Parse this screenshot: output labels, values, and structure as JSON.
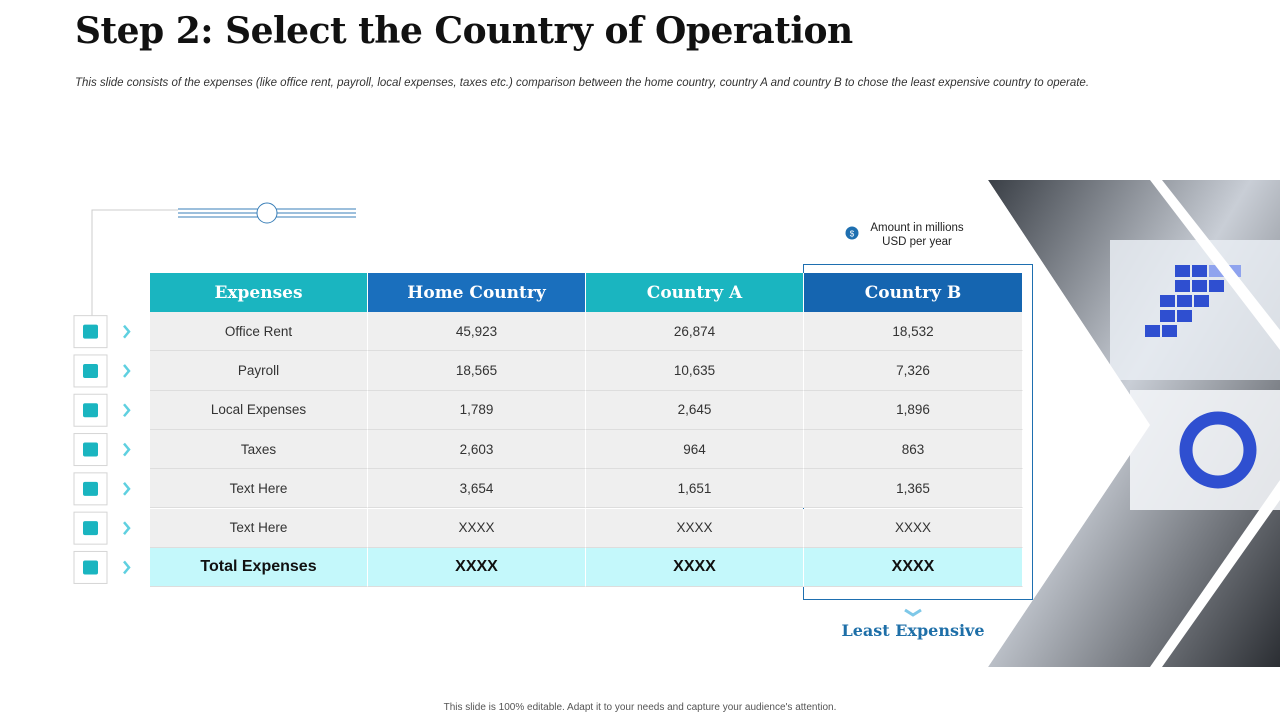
{
  "header": {
    "title": "Step 2: Select the Country of Operation",
    "subtitle": "This slide consists of the expenses (like office rent, payroll, local expenses, taxes etc.) comparison between the home country, country A and country B to chose the least expensive country to operate."
  },
  "note": "Amount in millions USD per year",
  "table": {
    "columns": [
      "Expenses",
      "Home Country",
      "Country A",
      "Country B"
    ],
    "rows": [
      [
        "Office Rent",
        "45,923",
        "26,874",
        "18,532"
      ],
      [
        "Payroll",
        "18,565",
        "10,635",
        "7,326"
      ],
      [
        "Local Expenses",
        "1,789",
        "2,645",
        "1,896"
      ],
      [
        "Taxes",
        "2,603",
        "964",
        "863"
      ],
      [
        "Text Here",
        "3,654",
        "1,651",
        "1,365"
      ],
      [
        "Text Here",
        "XXXX",
        "XXXX",
        "XXXX"
      ]
    ],
    "total": [
      "Total Expenses",
      "XXXX",
      "XXXX",
      "XXXX"
    ]
  },
  "highlight": "Least Expensive",
  "footer": "This slide is 100% editable. Adapt it to your needs and capture your audience's attention."
}
